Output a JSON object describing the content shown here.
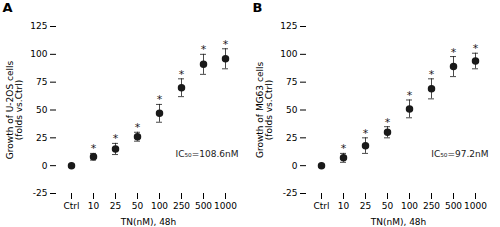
{
  "chart_data": [
    {
      "type": "errorbar",
      "title": "A",
      "y_label": "Growth of U-2OS cells\n(folds vs.Ctrl)",
      "x_label": "TN(nM), 48h",
      "annotation": "IC₅₀=108.6nM",
      "categories": [
        "Ctrl",
        "10",
        "25",
        "50",
        "100",
        "250",
        "500",
        "1000"
      ],
      "values": [
        0,
        8,
        15,
        26,
        47,
        70,
        91,
        96
      ],
      "errors": [
        0.5,
        3,
        5,
        4,
        8,
        8,
        9,
        9
      ],
      "point_labels": [
        null,
        "*",
        "*",
        "*",
        "*",
        "*",
        "*",
        "*"
      ],
      "ylim": [
        -25,
        125
      ],
      "yticks": [
        -25,
        0,
        25,
        50,
        75,
        100,
        125
      ],
      "color": "#1a1a1a",
      "marker": "circle",
      "grid": false
    },
    {
      "type": "errorbar",
      "title": "B",
      "y_label": "Growth of MG63 cells\n(folds vs.Ctrl)",
      "x_label": "TN(nM), 48h",
      "annotation": "IC₅₀=97.2nM",
      "categories": [
        "Ctrl",
        "10",
        "25",
        "50",
        "100",
        "250",
        "500",
        "1000"
      ],
      "values": [
        0,
        7,
        18,
        30,
        51,
        69,
        89,
        94
      ],
      "errors": [
        0.5,
        4,
        7,
        5,
        8,
        9,
        9,
        7
      ],
      "point_labels": [
        null,
        "*",
        "*",
        "*",
        "*",
        "*",
        "*",
        "*"
      ],
      "ylim": [
        -25,
        125
      ],
      "yticks": [
        -25,
        0,
        25,
        50,
        75,
        100,
        125
      ],
      "color": "#1a1a1a",
      "marker": "circle",
      "grid": false
    }
  ]
}
